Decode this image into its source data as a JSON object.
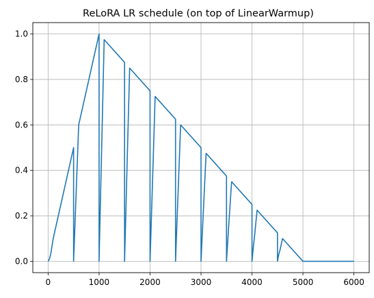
{
  "chart_data": {
    "type": "line",
    "title": "ReLoRA LR schedule (on top of LinearWarmup)",
    "xlabel": "",
    "ylabel": "",
    "xlim": [
      -300,
      6300
    ],
    "ylim": [
      -0.05,
      1.05
    ],
    "x_ticks": [
      0,
      1000,
      2000,
      3000,
      4000,
      5000,
      6000
    ],
    "x_tick_labels": [
      "0",
      "1000",
      "2000",
      "3000",
      "4000",
      "5000",
      "6000"
    ],
    "y_ticks": [
      0.0,
      0.2,
      0.4,
      0.6,
      0.8,
      1.0
    ],
    "y_tick_labels": [
      "0.0",
      "0.2",
      "0.4",
      "0.6",
      "0.8",
      "1.0"
    ],
    "grid": true,
    "line_color": "#1f77b4",
    "series": [
      {
        "x": [
          0,
          25,
          50,
          100,
          500,
          500,
          525,
          550,
          600,
          1000,
          1000,
          1025,
          1050,
          1100,
          1500,
          1500,
          1525,
          1550,
          1600,
          2000,
          2000,
          2025,
          2050,
          2100,
          2500,
          2500,
          2525,
          2550,
          2600,
          3000,
          3000,
          3025,
          3050,
          3100,
          3500,
          3500,
          3525,
          3550,
          3600,
          4000,
          4000,
          4025,
          4050,
          4100,
          4500,
          4500,
          4525,
          4550,
          4600,
          5000,
          5000,
          6000
        ],
        "y": [
          0.0,
          0.01,
          0.03,
          0.1,
          0.5,
          0.0,
          0.15,
          0.3,
          0.6,
          1.0,
          0.0,
          0.25,
          0.49,
          0.975,
          0.875,
          0.0,
          0.21,
          0.43,
          0.85,
          0.75,
          0.0,
          0.18,
          0.36,
          0.725,
          0.625,
          0.0,
          0.15,
          0.3,
          0.6,
          0.5,
          0.0,
          0.12,
          0.24,
          0.475,
          0.375,
          0.0,
          0.09,
          0.18,
          0.35,
          0.25,
          0.0,
          0.06,
          0.11,
          0.225,
          0.125,
          0.0,
          0.03,
          0.05,
          0.1,
          0.0,
          0.0,
          0.0
        ]
      }
    ]
  }
}
